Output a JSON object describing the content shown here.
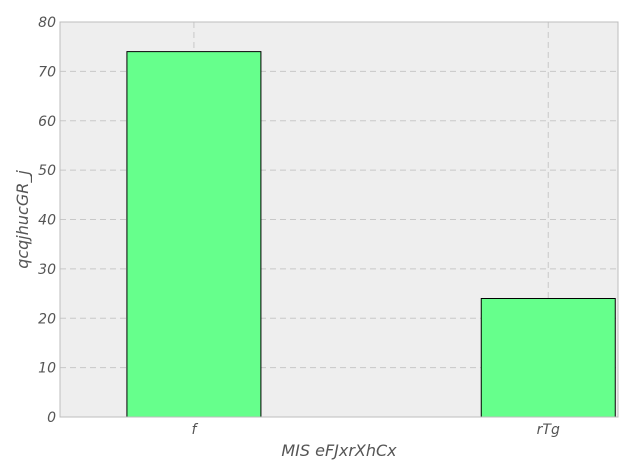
{
  "chart_data": {
    "type": "bar",
    "categories": [
      "f",
      "rTg"
    ],
    "values": [
      74,
      24
    ],
    "xlabel": "MIS eFJxrXhCx",
    "ylabel": "qcqjhucGR_j",
    "ylim": [
      0,
      80
    ],
    "yticks": [
      0,
      10,
      20,
      30,
      40,
      50,
      60,
      70,
      80
    ],
    "grid": true,
    "colors": {
      "bar_fill": "#66ff8c",
      "bar_edge": "#000000",
      "plot_background": "#eeeeee",
      "grid": "#c8c8c8",
      "text": "#555555"
    }
  }
}
